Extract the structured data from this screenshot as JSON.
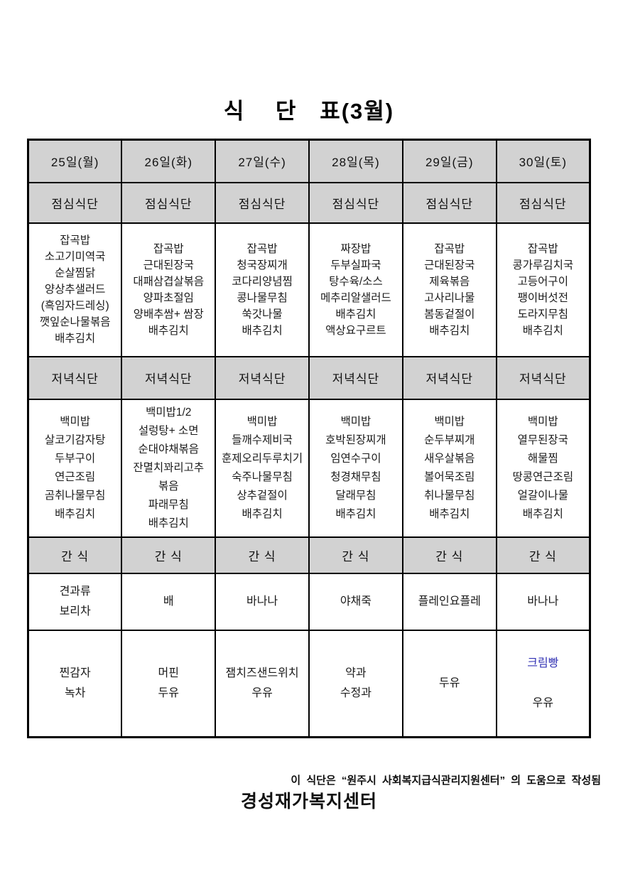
{
  "title": "식    단   표(3월)",
  "days": [
    "25일(월)",
    "26일(화)",
    "27일(수)",
    "28일(목)",
    "29일(금)",
    "30일(토)"
  ],
  "labels": {
    "lunch": "점심식단",
    "dinner": "저녁식단",
    "snack": "간 식"
  },
  "lunch": [
    "잡곡밥\n소고기미역국\n순살찜닭\n양상추샐러드\n(흑임자드레싱)\n깻잎순나물볶음\n배추김치",
    "잡곡밥\n근대된장국\n대패삼겹살볶음\n양파초절임\n양배추쌈+ 쌈장\n배추김치",
    "잡곡밥\n청국장찌개\n코다리양념찜\n콩나물무침\n쑥갓나물\n배추김치",
    "짜장밥\n두부실파국\n탕수육/소스\n메추리알샐러드\n배추김치\n액상요구르트",
    "잡곡밥\n근대된장국\n제육볶음\n고사리나물\n봄동겉절이\n배추김치",
    "잡곡밥\n콩가루김치국\n고등어구이\n팽이버섯전\n도라지무침\n배추김치"
  ],
  "dinner": [
    "백미밥\n살코기감자탕\n두부구이\n연근조림\n곰취나물무침\n배추김치",
    "백미밥1/2\n설렁탕+ 소면\n순대야채볶음\n잔멸치꽈리고추\n볶음\n파래무침\n배추김치",
    "백미밥\n들깨수제비국\n훈제오리두루치기\n숙주나물무침\n상추겉절이\n배추김치",
    "백미밥\n호박된장찌개\n임연수구이\n청경채무침\n달래무침\n배추김치",
    "백미밥\n순두부찌개\n새우살볶음\n볼어묵조림\n취나물무침\n배추김치",
    "백미밥\n열무된장국\n해물찜\n땅콩연근조림\n얼갈이나물\n배추김치"
  ],
  "snack1": [
    "견과류\n보리차",
    "배",
    "바나나",
    "야채죽",
    "플레인요플레",
    "바나나"
  ],
  "snack2": [
    "찐감자\n녹차",
    "머핀\n두유",
    "잼치즈샌드위치\n우유",
    "약과\n수정과",
    "두유"
  ],
  "snack2_col6": {
    "item": "크림빵",
    "drink": "우유"
  },
  "colors": {
    "highlight": "#3232b4",
    "header_bg": "#d2d2d2"
  },
  "footer": {
    "org": "경성재가복지센터",
    "note": "이 식단은 “원주시 사회복지급식관리지원센터” 의 도움으로 작성됨"
  }
}
